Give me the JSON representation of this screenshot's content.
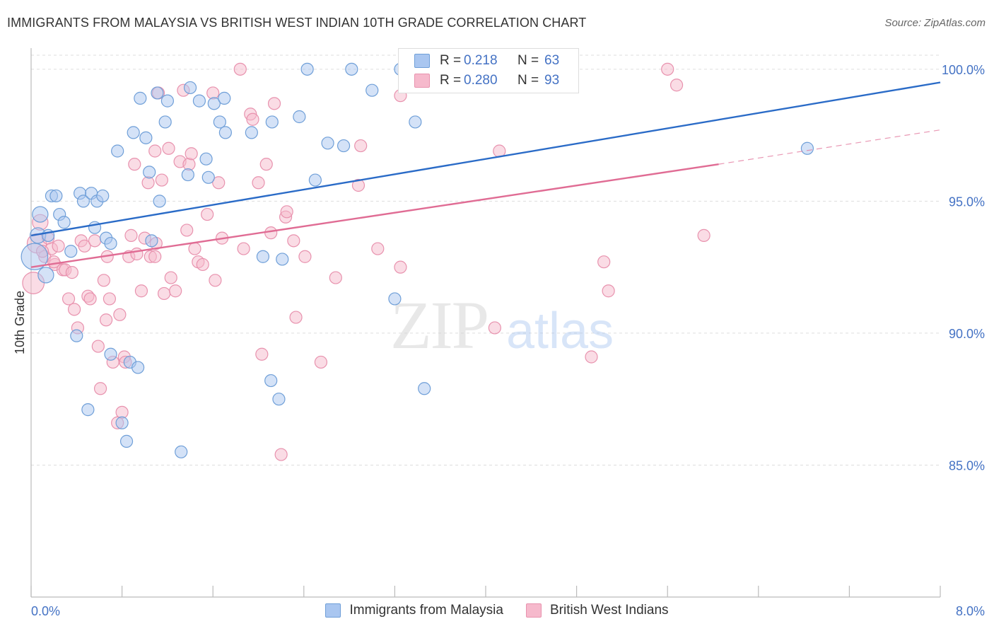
{
  "title": "IMMIGRANTS FROM MALAYSIA VS BRITISH WEST INDIAN 10TH GRADE CORRELATION CHART",
  "source": "Source: ZipAtlas.com",
  "watermark": {
    "zip": "ZIP",
    "atlas": "atlas"
  },
  "legend": {
    "r_label": "R =",
    "n_label": "N =",
    "series1": {
      "r": "0.218",
      "n": "63"
    },
    "series2": {
      "r": "0.280",
      "n": "93"
    }
  },
  "colors": {
    "blue_fill": "#a9c6f0",
    "blue_stroke": "#6f9fd8",
    "blue_line": "#2a6bc7",
    "pink_fill": "#f6b9cc",
    "pink_stroke": "#e892ae",
    "pink_line": "#e06c94",
    "axis_label": "#4472c4",
    "grid": "#dddddd"
  },
  "chart_data": {
    "type": "scatter",
    "title": "IMMIGRANTS FROM MALAYSIA VS BRITISH WEST INDIAN 10TH GRADE CORRELATION CHART",
    "xlabel": "",
    "ylabel": "10th Grade",
    "xlim": [
      0.0,
      8.0
    ],
    "ylim": [
      80.0,
      100.8
    ],
    "x_tick_labels": [
      "0.0%",
      "8.0%"
    ],
    "y_ticks": [
      85.0,
      90.0,
      95.0,
      100.0
    ],
    "y_tick_labels": [
      "85.0%",
      "90.0%",
      "95.0%",
      "100.0%"
    ],
    "grid": true,
    "legend_position": "top-center",
    "series": [
      {
        "name": "Immigrants from Malaysia",
        "color": "#a9c6f0",
        "trend": {
          "x": [
            0.0,
            8.0
          ],
          "y": [
            93.7,
            99.5
          ]
        },
        "points": [
          [
            0.03,
            92.9,
            2.2
          ],
          [
            0.06,
            93.7,
            1.3
          ],
          [
            0.08,
            94.5,
            1.3
          ],
          [
            0.13,
            92.2,
            1.3
          ],
          [
            0.15,
            93.7,
            1.0
          ],
          [
            0.18,
            95.2,
            1.0
          ],
          [
            0.22,
            95.2,
            1.0
          ],
          [
            0.25,
            94.5,
            1.0
          ],
          [
            0.29,
            94.2,
            1.0
          ],
          [
            0.35,
            93.1,
            1.0
          ],
          [
            0.4,
            89.9,
            1.0
          ],
          [
            0.43,
            95.3,
            1.0
          ],
          [
            0.46,
            95.0,
            1.0
          ],
          [
            0.5,
            87.1,
            1.0
          ],
          [
            0.53,
            95.3,
            1.0
          ],
          [
            0.56,
            94.0,
            1.0
          ],
          [
            0.58,
            95.0,
            1.0
          ],
          [
            0.63,
            95.2,
            1.0
          ],
          [
            0.66,
            93.6,
            1.0
          ],
          [
            0.7,
            93.4,
            1.0
          ],
          [
            0.7,
            89.2,
            1.0
          ],
          [
            0.76,
            96.9,
            1.0
          ],
          [
            0.8,
            86.6,
            1.0
          ],
          [
            0.84,
            85.9,
            1.0
          ],
          [
            0.87,
            88.9,
            1.0
          ],
          [
            0.9,
            97.6,
            1.0
          ],
          [
            0.94,
            88.7,
            1.0
          ],
          [
            0.96,
            98.9,
            1.0
          ],
          [
            1.01,
            97.4,
            1.0
          ],
          [
            1.04,
            96.1,
            1.0
          ],
          [
            1.06,
            93.5,
            1.0
          ],
          [
            1.11,
            99.1,
            1.0
          ],
          [
            1.13,
            95.0,
            1.0
          ],
          [
            1.18,
            98.0,
            1.0
          ],
          [
            1.2,
            98.8,
            1.0
          ],
          [
            1.32,
            85.5,
            1.0
          ],
          [
            1.38,
            96.0,
            1.0
          ],
          [
            1.4,
            99.3,
            1.0
          ],
          [
            1.48,
            98.8,
            1.0
          ],
          [
            1.54,
            96.6,
            1.0
          ],
          [
            1.56,
            95.9,
            1.0
          ],
          [
            1.61,
            98.7,
            1.0
          ],
          [
            1.66,
            98.0,
            1.0
          ],
          [
            1.71,
            97.6,
            1.0
          ],
          [
            1.7,
            98.9,
            1.0
          ],
          [
            1.94,
            97.6,
            1.0
          ],
          [
            2.04,
            92.9,
            1.0
          ],
          [
            2.11,
            88.2,
            1.0
          ],
          [
            2.12,
            98.0,
            1.0
          ],
          [
            2.18,
            87.5,
            1.0
          ],
          [
            2.21,
            92.8,
            1.0
          ],
          [
            2.36,
            98.2,
            1.0
          ],
          [
            2.43,
            100.0,
            1.0
          ],
          [
            2.5,
            95.8,
            1.0
          ],
          [
            2.61,
            97.2,
            1.0
          ],
          [
            2.75,
            97.1,
            1.0
          ],
          [
            2.82,
            100.0,
            1.0
          ],
          [
            3.0,
            99.2,
            1.0
          ],
          [
            3.2,
            91.3,
            1.0
          ],
          [
            3.38,
            98.0,
            1.0
          ],
          [
            3.46,
            87.9,
            1.0
          ],
          [
            6.83,
            97.0,
            1.0
          ],
          [
            3.25,
            100.0,
            1.0
          ]
        ]
      },
      {
        "name": "British West Indians",
        "color": "#f6b9cc",
        "trend": {
          "x": [
            0.0,
            6.05
          ],
          "y": [
            92.5,
            96.4
          ]
        },
        "trend_extension": {
          "x": [
            6.05,
            8.0
          ],
          "y": [
            96.4,
            97.7
          ]
        },
        "points": [
          [
            0.02,
            91.9,
            1.8
          ],
          [
            0.05,
            93.4,
            1.6
          ],
          [
            0.08,
            94.2,
            1.3
          ],
          [
            0.12,
            92.9,
            1.0
          ],
          [
            0.15,
            93.6,
            1.0
          ],
          [
            0.18,
            93.2,
            1.0
          ],
          [
            0.21,
            92.6,
            1.0
          ],
          [
            0.24,
            93.3,
            1.0
          ],
          [
            0.28,
            92.4,
            1.0
          ],
          [
            0.3,
            92.4,
            1.0
          ],
          [
            0.33,
            91.3,
            1.0
          ],
          [
            0.36,
            92.3,
            1.0
          ],
          [
            0.38,
            90.9,
            1.0
          ],
          [
            0.41,
            90.2,
            1.0
          ],
          [
            0.44,
            93.5,
            1.0
          ],
          [
            0.47,
            93.3,
            1.0
          ],
          [
            0.5,
            91.4,
            1.0
          ],
          [
            0.52,
            91.3,
            1.0
          ],
          [
            0.56,
            93.5,
            1.0
          ],
          [
            0.59,
            89.5,
            1.0
          ],
          [
            0.61,
            87.9,
            1.0
          ],
          [
            0.64,
            92.0,
            1.0
          ],
          [
            0.66,
            90.5,
            1.0
          ],
          [
            0.69,
            91.3,
            1.0
          ],
          [
            0.72,
            88.9,
            1.0
          ],
          [
            0.76,
            86.6,
            1.0
          ],
          [
            0.78,
            90.7,
            1.0
          ],
          [
            0.8,
            87.0,
            1.0
          ],
          [
            0.82,
            89.1,
            1.0
          ],
          [
            0.86,
            92.9,
            1.0
          ],
          [
            0.88,
            93.7,
            1.0
          ],
          [
            0.91,
            96.4,
            1.0
          ],
          [
            0.93,
            93.0,
            1.0
          ],
          [
            0.97,
            91.6,
            1.0
          ],
          [
            1.0,
            93.6,
            1.0
          ],
          [
            1.03,
            95.7,
            1.0
          ],
          [
            1.05,
            92.9,
            1.0
          ],
          [
            1.09,
            92.9,
            1.0
          ],
          [
            1.09,
            96.9,
            1.0
          ],
          [
            1.12,
            99.1,
            1.0
          ],
          [
            1.15,
            95.8,
            1.0
          ],
          [
            1.17,
            91.5,
            1.0
          ],
          [
            1.21,
            97.0,
            1.0
          ],
          [
            1.23,
            92.1,
            1.0
          ],
          [
            1.27,
            91.6,
            1.0
          ],
          [
            1.31,
            96.5,
            1.0
          ],
          [
            1.34,
            99.2,
            1.0
          ],
          [
            1.37,
            93.9,
            1.0
          ],
          [
            1.39,
            96.4,
            1.0
          ],
          [
            1.41,
            96.8,
            1.0
          ],
          [
            1.44,
            93.2,
            1.0
          ],
          [
            1.47,
            92.7,
            1.0
          ],
          [
            1.51,
            92.6,
            1.0
          ],
          [
            1.55,
            94.5,
            1.0
          ],
          [
            1.6,
            99.1,
            1.0
          ],
          [
            1.62,
            92.0,
            1.0
          ],
          [
            1.65,
            95.7,
            1.0
          ],
          [
            1.68,
            93.6,
            1.0
          ],
          [
            1.84,
            100.0,
            1.0
          ],
          [
            1.87,
            93.2,
            1.0
          ],
          [
            1.93,
            98.3,
            1.0
          ],
          [
            1.95,
            98.1,
            1.0
          ],
          [
            2.0,
            95.7,
            1.0
          ],
          [
            2.03,
            89.2,
            1.0
          ],
          [
            2.07,
            96.4,
            1.0
          ],
          [
            2.11,
            93.8,
            1.0
          ],
          [
            2.14,
            98.7,
            1.0
          ],
          [
            2.2,
            85.4,
            1.0
          ],
          [
            2.24,
            94.4,
            1.0
          ],
          [
            2.25,
            94.6,
            1.0
          ],
          [
            2.31,
            93.5,
            1.0
          ],
          [
            2.33,
            90.6,
            1.0
          ],
          [
            2.41,
            92.9,
            1.0
          ],
          [
            2.55,
            88.9,
            1.0
          ],
          [
            2.68,
            92.1,
            1.0
          ],
          [
            2.88,
            95.6,
            1.0
          ],
          [
            2.9,
            97.1,
            1.0
          ],
          [
            3.05,
            93.2,
            1.0
          ],
          [
            3.25,
            92.5,
            1.0
          ],
          [
            3.25,
            99.0,
            1.0
          ],
          [
            4.08,
            90.2,
            1.0
          ],
          [
            4.12,
            96.9,
            1.0
          ],
          [
            4.93,
            89.1,
            1.0
          ],
          [
            5.04,
            92.7,
            1.0
          ],
          [
            5.08,
            91.6,
            1.0
          ],
          [
            5.6,
            100.0,
            1.0
          ],
          [
            5.68,
            99.4,
            1.0
          ],
          [
            5.92,
            93.7,
            1.0
          ],
          [
            0.1,
            93.1,
            1.0
          ],
          [
            0.2,
            92.7,
            1.0
          ],
          [
            0.67,
            92.9,
            1.0
          ],
          [
            0.83,
            88.9,
            1.0
          ],
          [
            1.1,
            93.4,
            1.0
          ]
        ]
      }
    ]
  }
}
